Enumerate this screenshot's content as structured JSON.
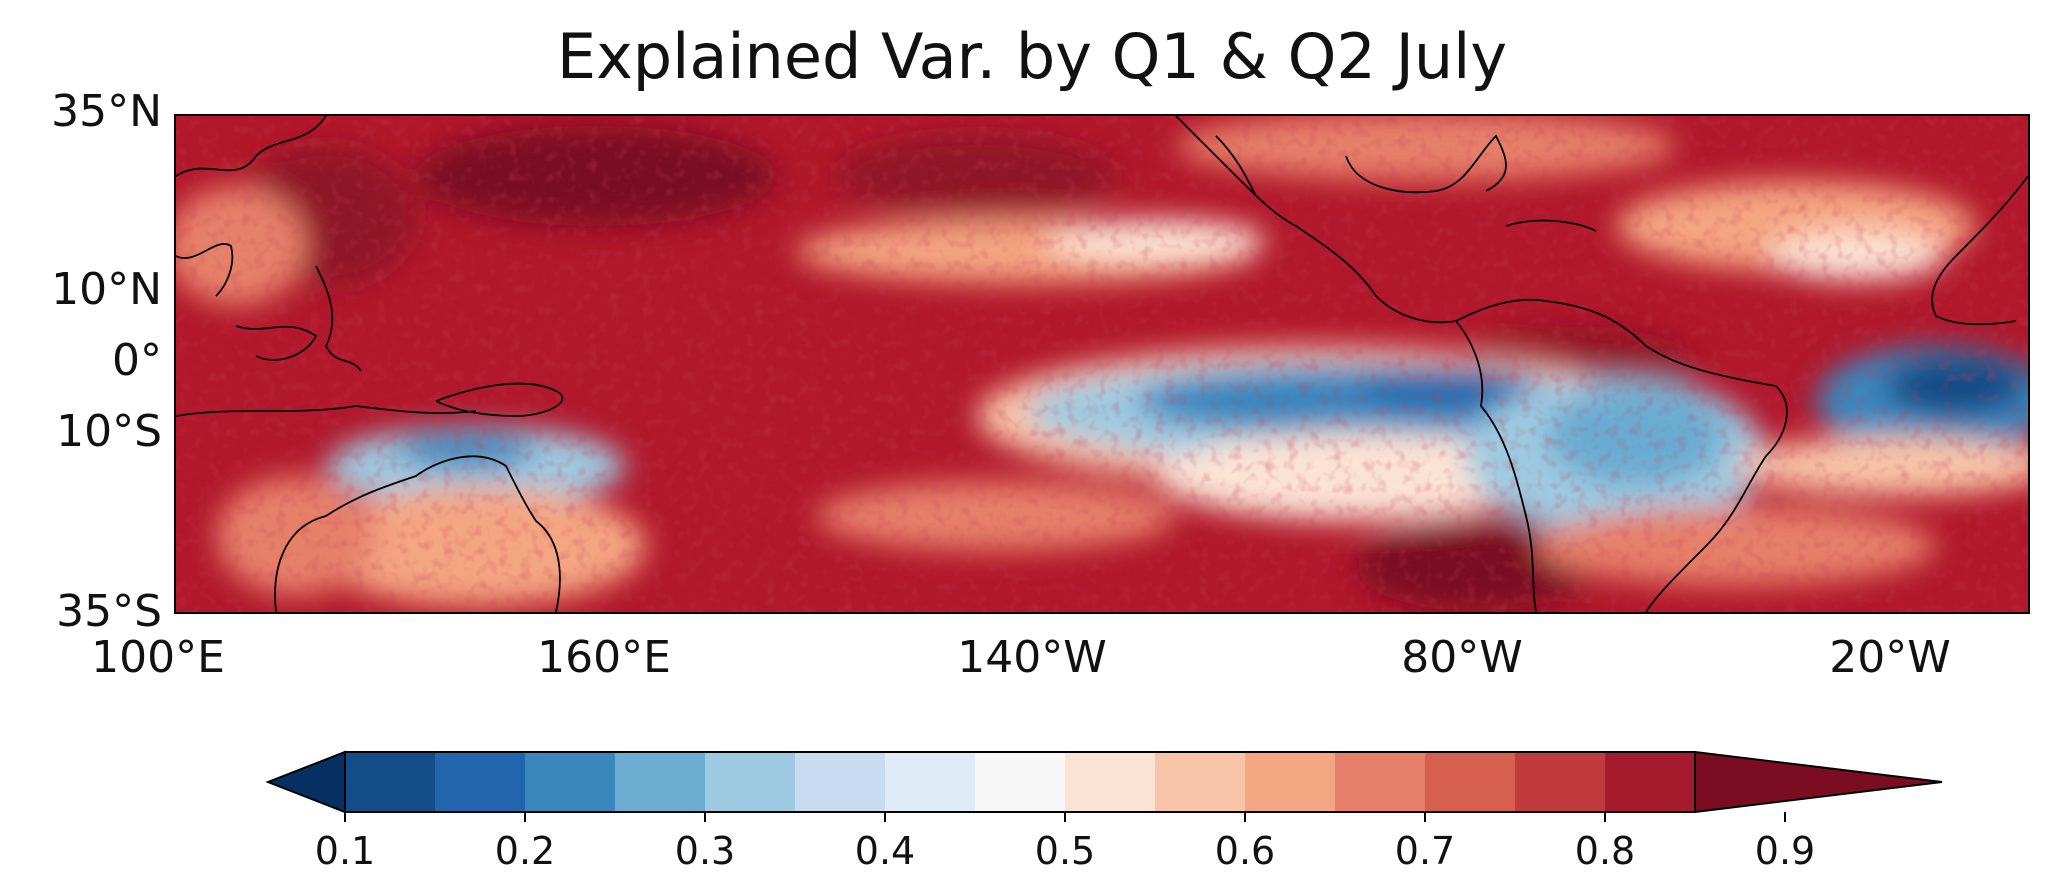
{
  "title": "Explained Var. by Q1 & Q2 July",
  "lat_labels": [
    "35°N",
    "10°N",
    "0°",
    "10°S",
    "35°S"
  ],
  "lon_labels": [
    "100°E",
    "160°E",
    "140°W",
    "80°W",
    "20°W"
  ],
  "colorbar": {
    "ticks": [
      "0.1",
      "0.2",
      "0.3",
      "0.4",
      "0.5",
      "0.6",
      "0.7",
      "0.8",
      "0.9"
    ],
    "colors": [
      "#053061",
      "#134c87",
      "#2166ac",
      "#3a87bd",
      "#6bacd1",
      "#9ecae1",
      "#c6dbef",
      "#deebf7",
      "#f7f7f7",
      "#fbe3d4",
      "#f8c4a8",
      "#f4a582",
      "#e6806a",
      "#d6604d",
      "#c13b3d",
      "#a61a2d",
      "#7a0d22"
    ]
  }
}
